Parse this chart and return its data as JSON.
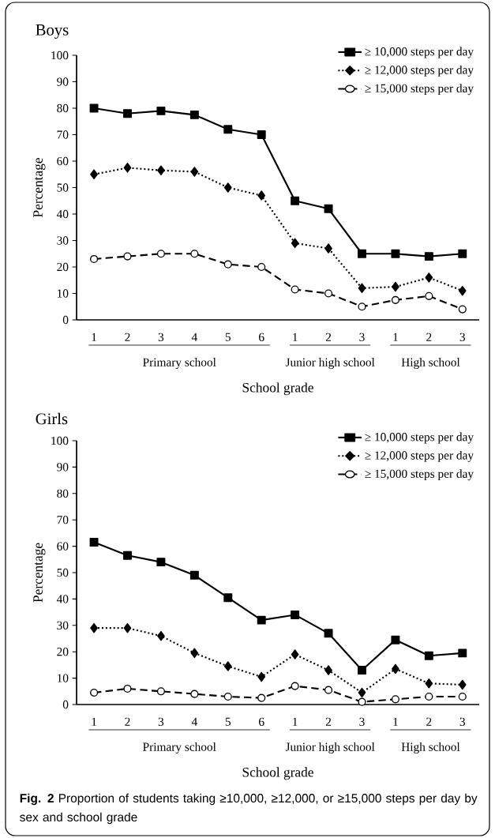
{
  "chart_data": [
    {
      "type": "line",
      "title": "Boys",
      "xlabel": "School grade",
      "ylabel": "Percentage",
      "categories": [
        "1",
        "2",
        "3",
        "4",
        "5",
        "6",
        "1",
        "2",
        "3",
        "1",
        "2",
        "3"
      ],
      "series": [
        {
          "name": "≥ 10,000 steps per day",
          "color": "#000000",
          "marker": "square",
          "line_style": "solid",
          "values": [
            80,
            78,
            79,
            77.5,
            72,
            70,
            45,
            42,
            25,
            25,
            24,
            25
          ]
        },
        {
          "name": "≥ 12,000 steps per day",
          "color": "#000000",
          "marker": "diamond",
          "line_style": "dotted",
          "values": [
            55,
            57.5,
            56.5,
            56,
            50,
            47,
            29,
            27,
            12,
            12.5,
            16,
            11
          ]
        },
        {
          "name": "≥ 15,000 steps per day",
          "color": "#000000",
          "marker": "circle",
          "line_style": "dashed",
          "values": [
            23,
            24,
            25,
            25,
            21,
            20,
            11.5,
            10,
            5,
            7.5,
            9,
            4
          ]
        }
      ],
      "ylim": [
        0,
        100
      ],
      "yticks": [
        0,
        10,
        20,
        30,
        40,
        50,
        60,
        70,
        80,
        90,
        100
      ],
      "legend": "top right",
      "annotations": [
        "Primary school",
        "Junior high school",
        "High school"
      ]
    },
    {
      "type": "line",
      "title": "Girls",
      "xlabel": "School grade",
      "ylabel": "Percentage",
      "categories": [
        "1",
        "2",
        "3",
        "4",
        "5",
        "6",
        "1",
        "2",
        "3",
        "1",
        "2",
        "3"
      ],
      "series": [
        {
          "name": "≥ 10,000 steps per day",
          "color": "#000000",
          "marker": "square",
          "line_style": "solid",
          "values": [
            61.5,
            56.5,
            54,
            49,
            40.5,
            32,
            34,
            27,
            13,
            24.5,
            18.5,
            19.5
          ]
        },
        {
          "name": "≥ 12,000 steps per day",
          "color": "#000000",
          "marker": "diamond",
          "line_style": "dotted",
          "values": [
            29,
            29,
            26,
            19.5,
            14.5,
            10.5,
            19,
            13,
            4.5,
            13.5,
            8,
            7.5
          ]
        },
        {
          "name": "≥ 15,000 steps per day",
          "color": "#000000",
          "marker": "circle",
          "line_style": "dashed",
          "values": [
            4.5,
            6,
            5,
            4,
            3,
            2.5,
            7,
            5.5,
            1,
            2,
            3,
            3
          ]
        }
      ],
      "ylim": [
        0,
        100
      ],
      "yticks": [
        0,
        10,
        20,
        30,
        40,
        50,
        60,
        70,
        80,
        90,
        100
      ],
      "legend": "top right",
      "annotations": [
        "Primary school",
        "Junior high school",
        "High school",
        "**Fig. 2** Proportion of students taking ≥10,000, ≥12,000, or ≥15,000 steps per day by sex and school grade"
      ]
    }
  ]
}
